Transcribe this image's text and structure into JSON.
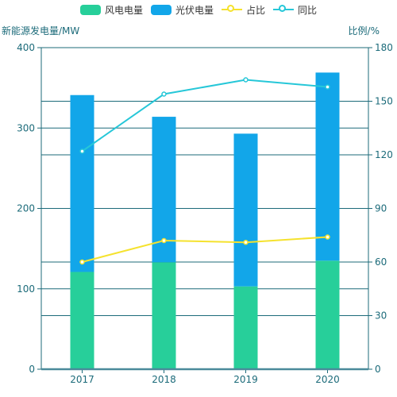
{
  "chart_data": {
    "type": "bar+line",
    "categories": [
      "2017",
      "2018",
      "2019",
      "2020"
    ],
    "bar_series": [
      {
        "name": "风电电量",
        "color": "#27cf9a",
        "values": [
          121,
          133,
          103,
          135
        ]
      },
      {
        "name": "光伏电量",
        "color": "#12a6e9",
        "values": [
          220,
          181,
          190,
          234
        ]
      }
    ],
    "line_series": [
      {
        "name": "占比",
        "color": "#f5e22e",
        "values": [
          60,
          72,
          71,
          74
        ]
      },
      {
        "name": "同比",
        "color": "#26c7d8",
        "values": [
          122,
          154,
          162,
          158
        ]
      }
    ],
    "y_left": {
      "label": "新能源发电量/MW",
      "min": 0,
      "max": 400,
      "ticks": [
        0,
        100,
        200,
        300,
        400
      ]
    },
    "y_right": {
      "label": "比例/%",
      "min": 0,
      "max": 180,
      "ticks": [
        0,
        30,
        60,
        90,
        120,
        150,
        180
      ]
    },
    "legend_position": "top-center",
    "axis_color": "#1c6b7a",
    "grid": true
  }
}
